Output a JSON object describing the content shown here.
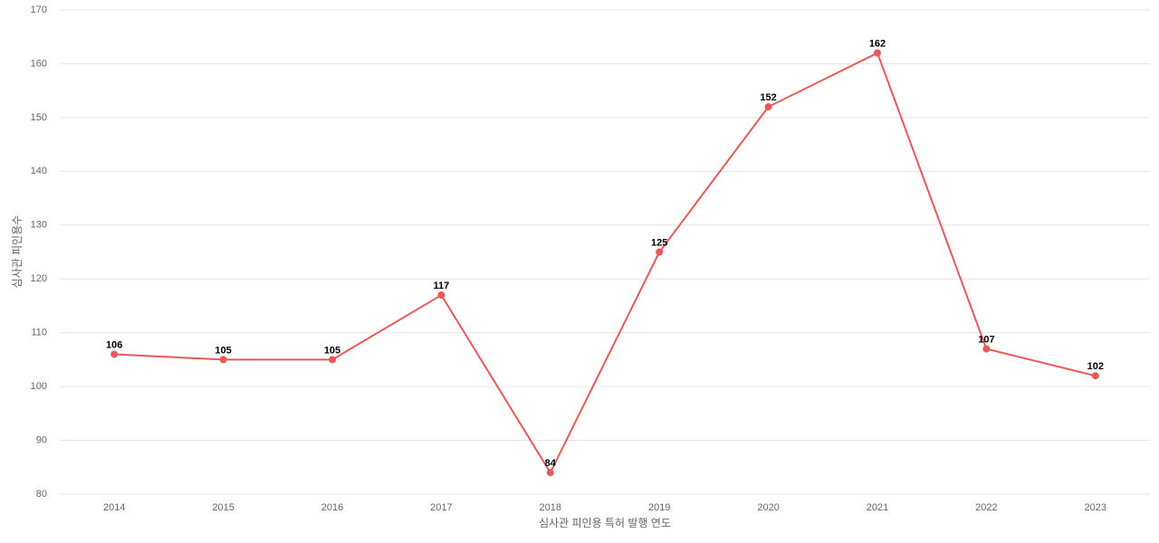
{
  "chart_data": {
    "type": "line",
    "x_label": "심사관 피인용 특허 발행 연도",
    "y_label": "심사관 피인용수",
    "categories": [
      "2014",
      "2015",
      "2016",
      "2017",
      "2018",
      "2019",
      "2020",
      "2021",
      "2022",
      "2023"
    ],
    "values": [
      106,
      105,
      105,
      117,
      84,
      125,
      152,
      162,
      107,
      102
    ],
    "color": "#e85a5a",
    "ylim": [
      80,
      170
    ],
    "yticks": [
      80,
      90,
      100,
      110,
      120,
      130,
      140,
      150,
      160,
      170
    ],
    "grid": true
  }
}
